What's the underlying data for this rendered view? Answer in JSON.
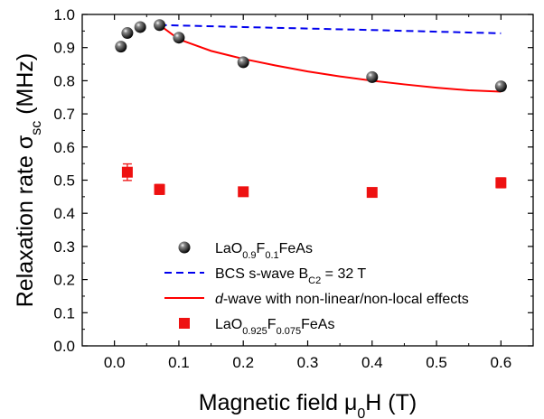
{
  "chart_data": {
    "type": "scatter",
    "xlabel": {
      "prefix": "Magnetic field ",
      "symbol": "μ",
      "sub": "0",
      "suffix": "H (T)"
    },
    "ylabel": {
      "prefix": "Relaxation rate ",
      "symbol": "σ",
      "sub": "sc",
      "suffix": " (MHz)"
    },
    "xlim": [
      -0.05,
      0.65
    ],
    "ylim": [
      0.0,
      1.0
    ],
    "xticks": [
      0.0,
      0.1,
      0.2,
      0.3,
      0.4,
      0.5,
      0.6
    ],
    "xtick_labels": [
      "0.0",
      "0.1",
      "0.2",
      "0.3",
      "0.4",
      "0.5",
      "0.6"
    ],
    "yticks": [
      0.0,
      0.1,
      0.2,
      0.3,
      0.4,
      0.5,
      0.6,
      0.7,
      0.8,
      0.9,
      1.0
    ],
    "ytick_labels": [
      "0.0",
      "0.1",
      "0.2",
      "0.3",
      "0.4",
      "0.5",
      "0.6",
      "0.7",
      "0.8",
      "0.9",
      "1.0"
    ],
    "grid": false,
    "legend_position": "lower-center",
    "series": [
      {
        "kind": "points",
        "marker": "sphere",
        "color": "#000000",
        "legend": {
          "parts": [
            {
              "t": "LaO"
            },
            {
              "t": "0.9",
              "sub": true
            },
            {
              "t": "F"
            },
            {
              "t": "0.1",
              "sub": true
            },
            {
              "t": "FeAs"
            }
          ]
        },
        "x": [
          0.01,
          0.02,
          0.04,
          0.07,
          0.1,
          0.2,
          0.4,
          0.6
        ],
        "y": [
          0.903,
          0.944,
          0.962,
          0.968,
          0.93,
          0.856,
          0.811,
          0.783
        ]
      },
      {
        "kind": "line",
        "style": "dashed",
        "color": "#0000ee",
        "legend": {
          "parts": [
            {
              "t": "BCS s-wave B"
            },
            {
              "t": "C2",
              "sub": true
            },
            {
              "t": " = 32 T"
            }
          ]
        },
        "x": [
          0.07,
          0.2,
          0.4,
          0.6
        ],
        "y": [
          0.968,
          0.962,
          0.953,
          0.943
        ]
      },
      {
        "kind": "line",
        "style": "solid",
        "color": "#ff0000",
        "legend": {
          "parts": [
            {
              "t": "d",
              "italic": true
            },
            {
              "t": "-wave with non-linear/non-local effects"
            }
          ]
        },
        "x": [
          0.07,
          0.1,
          0.15,
          0.2,
          0.25,
          0.3,
          0.35,
          0.4,
          0.45,
          0.5,
          0.55,
          0.6
        ],
        "y": [
          0.968,
          0.925,
          0.89,
          0.866,
          0.846,
          0.828,
          0.813,
          0.8,
          0.789,
          0.779,
          0.771,
          0.767
        ]
      },
      {
        "kind": "points",
        "marker": "square",
        "color": "#ee1111",
        "legend": {
          "parts": [
            {
              "t": "LaO"
            },
            {
              "t": "0.925",
              "sub": true
            },
            {
              "t": "F"
            },
            {
              "t": "0.075",
              "sub": true
            },
            {
              "t": "FeAs"
            }
          ]
        },
        "x": [
          0.02,
          0.07,
          0.2,
          0.4,
          0.6
        ],
        "y": [
          0.524,
          0.472,
          0.465,
          0.463,
          0.492
        ],
        "yerr": [
          0.025,
          0.015,
          0.012,
          0.012,
          0.015
        ]
      }
    ]
  }
}
